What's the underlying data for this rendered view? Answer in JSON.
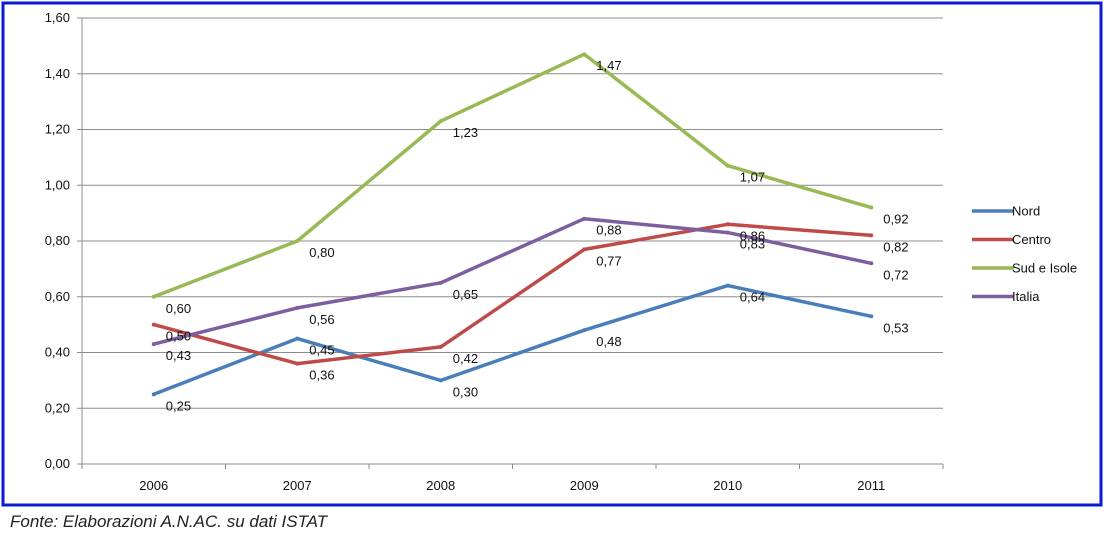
{
  "source_note": "Fonte: Elaborazioni A.N.AC. su dati ISTAT",
  "colors": {
    "frame_border": "#0a1bd6",
    "grid": "#8c8c8c",
    "axis": "#8c8c8c",
    "text": "#111111"
  },
  "chart_data": {
    "type": "line",
    "title": "",
    "xlabel": "",
    "ylabel": "",
    "categories": [
      "2006",
      "2007",
      "2008",
      "2009",
      "2010",
      "2011"
    ],
    "ylim": [
      0,
      1.6
    ],
    "y_ticks": [
      "0,00",
      "0,20",
      "0,40",
      "0,60",
      "0,80",
      "1,00",
      "1,20",
      "1,40",
      "1,60"
    ],
    "grid": true,
    "legend_position": "right",
    "series": [
      {
        "name": "Nord",
        "color": "#4a7ebb",
        "values": [
          0.25,
          0.45,
          0.3,
          0.48,
          0.64,
          0.53
        ],
        "labels": [
          "0,25",
          "0,45",
          "0,30",
          "0,48",
          "0,64",
          "0,53"
        ]
      },
      {
        "name": "Centro",
        "color": "#be4b48",
        "values": [
          0.5,
          0.36,
          0.42,
          0.77,
          0.86,
          0.82
        ],
        "labels": [
          "0,50",
          "0,36",
          "0,42",
          "0,77",
          "0,86",
          "0,82"
        ]
      },
      {
        "name": "Sud e Isole",
        "color": "#98b954",
        "values": [
          0.6,
          0.8,
          1.23,
          1.47,
          1.07,
          0.92
        ],
        "labels": [
          "0,60",
          "0,80",
          "1,23",
          "1,47",
          "1,07",
          "0,92"
        ]
      },
      {
        "name": "Italia",
        "color": "#7d5fa0",
        "values": [
          0.43,
          0.56,
          0.65,
          0.88,
          0.83,
          0.72
        ],
        "labels": [
          "0,43",
          "0,56",
          "0,65",
          "0,88",
          "0,83",
          "0,72"
        ]
      }
    ]
  }
}
